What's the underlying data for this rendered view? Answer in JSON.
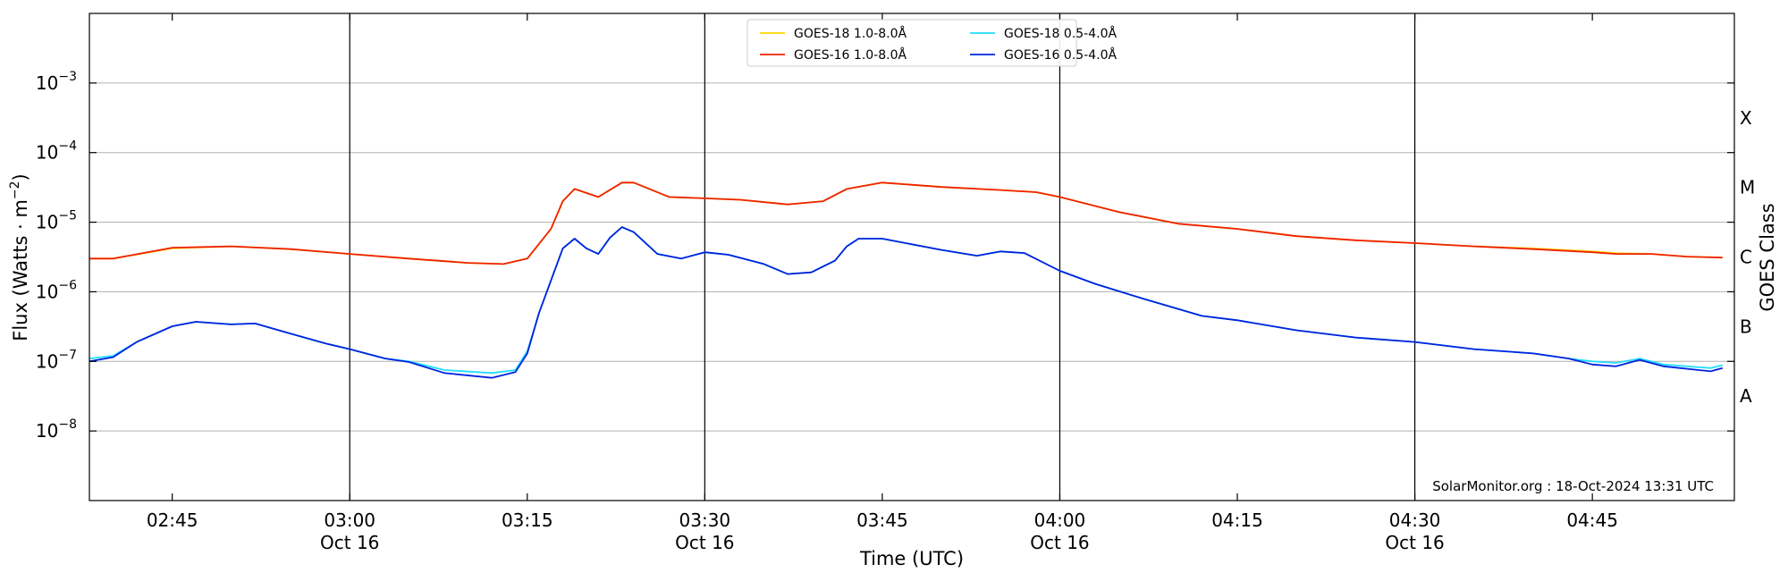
{
  "chart_data": {
    "type": "line",
    "xlabel": "Time (UTC)",
    "ylabel": "Flux (Watts · m",
    "ylabel_exponent": "−2",
    "ylabel_close": ")",
    "right_axis_label": "GOES Class",
    "credit": "SolarMonitor.org : 18-Oct-2024 13:31 UTC",
    "y_scale": "log",
    "ylim": [
      1e-09,
      0.01
    ],
    "xlim": [
      "02:38",
      "04:57"
    ],
    "x_ticks": [
      {
        "time": "02:45",
        "label": "02:45",
        "date": ""
      },
      {
        "time": "03:00",
        "label": "03:00",
        "date": "Oct 16"
      },
      {
        "time": "03:15",
        "label": "03:15",
        "date": ""
      },
      {
        "time": "03:30",
        "label": "03:30",
        "date": "Oct 16"
      },
      {
        "time": "03:45",
        "label": "03:45",
        "date": ""
      },
      {
        "time": "04:00",
        "label": "04:00",
        "date": "Oct 16"
      },
      {
        "time": "04:15",
        "label": "04:15",
        "date": ""
      },
      {
        "time": "04:30",
        "label": "04:30",
        "date": "Oct 16"
      },
      {
        "time": "04:45",
        "label": "04:45",
        "date": ""
      }
    ],
    "y_ticks": [
      {
        "value": 1e-08,
        "base": "10",
        "exp": "−8"
      },
      {
        "value": 1e-07,
        "base": "10",
        "exp": "−7"
      },
      {
        "value": 1e-06,
        "base": "10",
        "exp": "−6"
      },
      {
        "value": 1e-05,
        "base": "10",
        "exp": "−5"
      },
      {
        "value": 0.0001,
        "base": "10",
        "exp": "−4"
      },
      {
        "value": 0.001,
        "base": "10",
        "exp": "−3"
      }
    ],
    "goes_classes": [
      {
        "label": "A",
        "value": 3.16e-08
      },
      {
        "label": "B",
        "value": 3.16e-07
      },
      {
        "label": "C",
        "value": 3.16e-06
      },
      {
        "label": "M",
        "value": 3.16e-05
      },
      {
        "label": "X",
        "value": 0.000316
      }
    ],
    "day_lines": [
      "03:00",
      "03:30",
      "04:00",
      "04:30"
    ],
    "legend": {
      "placement": "top-center",
      "columns": 2
    },
    "grid": true,
    "series": [
      {
        "name": "GOES-18 1.0-8.0Å",
        "color": "#ffd500",
        "points": [
          [
            "02:38",
            3e-06
          ],
          [
            "02:40",
            3e-06
          ],
          [
            "02:45",
            4.2e-06
          ],
          [
            "02:50",
            4.5e-06
          ],
          [
            "02:55",
            4.1e-06
          ],
          [
            "03:00",
            3.5e-06
          ],
          [
            "03:05",
            3e-06
          ],
          [
            "03:10",
            2.6e-06
          ],
          [
            "03:13",
            2.5e-06
          ],
          [
            "03:15",
            3e-06
          ],
          [
            "03:17",
            8e-06
          ],
          [
            "03:18",
            2e-05
          ],
          [
            "03:19",
            3e-05
          ],
          [
            "03:21",
            2.3e-05
          ],
          [
            "03:23",
            3.7e-05
          ],
          [
            "03:24",
            3.7e-05
          ],
          [
            "03:27",
            2.3e-05
          ],
          [
            "03:30",
            2.2e-05
          ],
          [
            "03:33",
            2.1e-05
          ],
          [
            "03:37",
            1.8e-05
          ],
          [
            "03:40",
            2e-05
          ],
          [
            "03:42",
            3e-05
          ],
          [
            "03:45",
            3.7e-05
          ],
          [
            "03:50",
            3.2e-05
          ],
          [
            "03:55",
            2.9e-05
          ],
          [
            "03:58",
            2.7e-05
          ],
          [
            "04:00",
            2.3e-05
          ],
          [
            "04:05",
            1.4e-05
          ],
          [
            "04:10",
            9.5e-06
          ],
          [
            "04:15",
            8e-06
          ],
          [
            "04:20",
            6.3e-06
          ],
          [
            "04:25",
            5.5e-06
          ],
          [
            "04:30",
            5e-06
          ],
          [
            "04:35",
            4.5e-06
          ],
          [
            "04:40",
            4.2e-06
          ],
          [
            "04:45",
            3.8e-06
          ],
          [
            "04:47",
            3.6e-06
          ],
          [
            "04:50",
            3.5e-06
          ],
          [
            "04:53",
            3.2e-06
          ],
          [
            "04:56",
            3.1e-06
          ]
        ]
      },
      {
        "name": "GOES-16 1.0-8.0Å",
        "color": "#ee2200",
        "points": [
          [
            "02:38",
            3e-06
          ],
          [
            "02:40",
            3e-06
          ],
          [
            "02:45",
            4.3e-06
          ],
          [
            "02:50",
            4.5e-06
          ],
          [
            "02:55",
            4.1e-06
          ],
          [
            "03:00",
            3.5e-06
          ],
          [
            "03:05",
            3e-06
          ],
          [
            "03:10",
            2.6e-06
          ],
          [
            "03:13",
            2.5e-06
          ],
          [
            "03:15",
            3e-06
          ],
          [
            "03:17",
            8e-06
          ],
          [
            "03:18",
            2e-05
          ],
          [
            "03:19",
            3e-05
          ],
          [
            "03:21",
            2.3e-05
          ],
          [
            "03:23",
            3.7e-05
          ],
          [
            "03:24",
            3.7e-05
          ],
          [
            "03:27",
            2.3e-05
          ],
          [
            "03:30",
            2.2e-05
          ],
          [
            "03:33",
            2.1e-05
          ],
          [
            "03:37",
            1.8e-05
          ],
          [
            "03:40",
            2e-05
          ],
          [
            "03:42",
            3e-05
          ],
          [
            "03:45",
            3.7e-05
          ],
          [
            "03:50",
            3.2e-05
          ],
          [
            "03:55",
            2.9e-05
          ],
          [
            "03:58",
            2.7e-05
          ],
          [
            "04:00",
            2.3e-05
          ],
          [
            "04:05",
            1.4e-05
          ],
          [
            "04:10",
            9.5e-06
          ],
          [
            "04:15",
            8e-06
          ],
          [
            "04:20",
            6.3e-06
          ],
          [
            "04:25",
            5.5e-06
          ],
          [
            "04:30",
            5e-06
          ],
          [
            "04:35",
            4.5e-06
          ],
          [
            "04:40",
            4.1e-06
          ],
          [
            "04:45",
            3.7e-06
          ],
          [
            "04:47",
            3.5e-06
          ],
          [
            "04:50",
            3.5e-06
          ],
          [
            "04:53",
            3.2e-06
          ],
          [
            "04:56",
            3.1e-06
          ]
        ]
      },
      {
        "name": "GOES-18 0.5-4.0Å",
        "color": "#22ddff",
        "points": [
          [
            "02:38",
            1.1e-07
          ],
          [
            "02:40",
            1.2e-07
          ],
          [
            "02:42",
            1.9e-07
          ],
          [
            "02:45",
            3.2e-07
          ],
          [
            "02:47",
            3.7e-07
          ],
          [
            "02:50",
            3.4e-07
          ],
          [
            "02:52",
            3.5e-07
          ],
          [
            "02:55",
            2.5e-07
          ],
          [
            "02:58",
            1.8e-07
          ],
          [
            "03:00",
            1.5e-07
          ],
          [
            "03:03",
            1.1e-07
          ],
          [
            "03:05",
            1e-07
          ],
          [
            "03:08",
            7.5e-08
          ],
          [
            "03:12",
            6.8e-08
          ],
          [
            "03:14",
            7.5e-08
          ],
          [
            "03:15",
            1.4e-07
          ],
          [
            "03:16",
            5e-07
          ],
          [
            "03:18",
            4.2e-06
          ],
          [
            "03:19",
            5.8e-06
          ],
          [
            "03:20",
            4.2e-06
          ],
          [
            "03:21",
            3.5e-06
          ],
          [
            "03:22",
            6e-06
          ],
          [
            "03:23",
            8.5e-06
          ],
          [
            "03:24",
            7.2e-06
          ],
          [
            "03:26",
            3.5e-06
          ],
          [
            "03:28",
            3e-06
          ],
          [
            "03:30",
            3.7e-06
          ],
          [
            "03:32",
            3.4e-06
          ],
          [
            "03:35",
            2.5e-06
          ],
          [
            "03:37",
            1.8e-06
          ],
          [
            "03:39",
            1.9e-06
          ],
          [
            "03:41",
            2.8e-06
          ],
          [
            "03:42",
            4.5e-06
          ],
          [
            "03:43",
            5.8e-06
          ],
          [
            "03:45",
            5.8e-06
          ],
          [
            "03:50",
            4e-06
          ],
          [
            "03:53",
            3.3e-06
          ],
          [
            "03:55",
            3.8e-06
          ],
          [
            "03:57",
            3.6e-06
          ],
          [
            "04:00",
            2e-06
          ],
          [
            "04:03",
            1.3e-06
          ],
          [
            "04:07",
            8e-07
          ],
          [
            "04:12",
            4.5e-07
          ],
          [
            "04:15",
            3.9e-07
          ],
          [
            "04:20",
            2.8e-07
          ],
          [
            "04:25",
            2.2e-07
          ],
          [
            "04:30",
            1.9e-07
          ],
          [
            "04:35",
            1.5e-07
          ],
          [
            "04:40",
            1.3e-07
          ],
          [
            "04:43",
            1.1e-07
          ],
          [
            "04:45",
            1e-07
          ],
          [
            "04:47",
            9.5e-08
          ],
          [
            "04:49",
            1.1e-07
          ],
          [
            "04:51",
            9e-08
          ],
          [
            "04:55",
            8e-08
          ],
          [
            "04:56",
            8.8e-08
          ]
        ]
      },
      {
        "name": "GOES-16 0.5-4.0Å",
        "color": "#0022dd",
        "points": [
          [
            "02:38",
            1e-07
          ],
          [
            "02:40",
            1.15e-07
          ],
          [
            "02:42",
            1.9e-07
          ],
          [
            "02:45",
            3.2e-07
          ],
          [
            "02:47",
            3.7e-07
          ],
          [
            "02:50",
            3.4e-07
          ],
          [
            "02:52",
            3.5e-07
          ],
          [
            "02:55",
            2.5e-07
          ],
          [
            "02:58",
            1.8e-07
          ],
          [
            "03:00",
            1.5e-07
          ],
          [
            "03:03",
            1.1e-07
          ],
          [
            "03:05",
            9.8e-08
          ],
          [
            "03:08",
            6.8e-08
          ],
          [
            "03:12",
            5.8e-08
          ],
          [
            "03:14",
            7e-08
          ],
          [
            "03:15",
            1.3e-07
          ],
          [
            "03:16",
            5e-07
          ],
          [
            "03:18",
            4.2e-06
          ],
          [
            "03:19",
            5.8e-06
          ],
          [
            "03:20",
            4.2e-06
          ],
          [
            "03:21",
            3.5e-06
          ],
          [
            "03:22",
            6e-06
          ],
          [
            "03:23",
            8.5e-06
          ],
          [
            "03:24",
            7.2e-06
          ],
          [
            "03:26",
            3.5e-06
          ],
          [
            "03:28",
            3e-06
          ],
          [
            "03:30",
            3.7e-06
          ],
          [
            "03:32",
            3.4e-06
          ],
          [
            "03:35",
            2.5e-06
          ],
          [
            "03:37",
            1.8e-06
          ],
          [
            "03:39",
            1.9e-06
          ],
          [
            "03:41",
            2.8e-06
          ],
          [
            "03:42",
            4.5e-06
          ],
          [
            "03:43",
            5.8e-06
          ],
          [
            "03:45",
            5.8e-06
          ],
          [
            "03:50",
            4e-06
          ],
          [
            "03:53",
            3.3e-06
          ],
          [
            "03:55",
            3.8e-06
          ],
          [
            "03:57",
            3.6e-06
          ],
          [
            "04:00",
            2e-06
          ],
          [
            "04:03",
            1.3e-06
          ],
          [
            "04:07",
            8e-07
          ],
          [
            "04:12",
            4.5e-07
          ],
          [
            "04:15",
            3.9e-07
          ],
          [
            "04:20",
            2.8e-07
          ],
          [
            "04:25",
            2.2e-07
          ],
          [
            "04:30",
            1.9e-07
          ],
          [
            "04:35",
            1.5e-07
          ],
          [
            "04:40",
            1.3e-07
          ],
          [
            "04:43",
            1.1e-07
          ],
          [
            "04:45",
            9e-08
          ],
          [
            "04:47",
            8.5e-08
          ],
          [
            "04:49",
            1.05e-07
          ],
          [
            "04:51",
            8.5e-08
          ],
          [
            "04:55",
            7.2e-08
          ],
          [
            "04:56",
            8e-08
          ]
        ]
      }
    ]
  }
}
